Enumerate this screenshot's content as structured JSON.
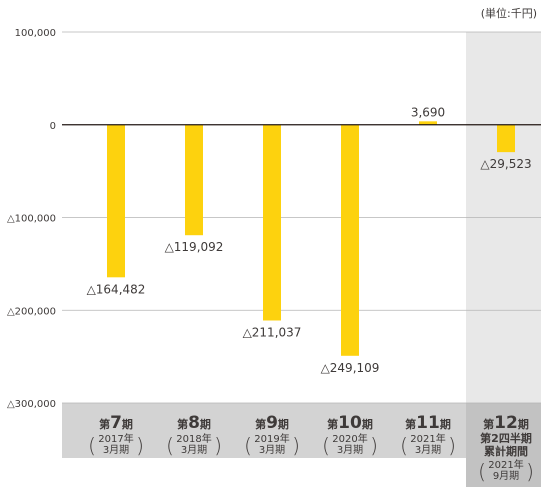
{
  "chart_data": {
    "type": "bar",
    "unit": "(単位:千円)",
    "ylim": [
      -300000,
      100000
    ],
    "yticks": [
      {
        "value": 100000,
        "label": "100,000"
      },
      {
        "value": 0,
        "label": "0"
      },
      {
        "value": -100000,
        "label": "△100,000"
      },
      {
        "value": -200000,
        "label": "△200,000"
      },
      {
        "value": -300000,
        "label": "△300,000"
      }
    ],
    "categories": [
      {
        "prefix": "第",
        "num": "7",
        "suffix": "期",
        "lines": [
          "2017年",
          "3月期"
        ]
      },
      {
        "prefix": "第",
        "num": "8",
        "suffix": "期",
        "lines": [
          "2018年",
          "3月期"
        ]
      },
      {
        "prefix": "第",
        "num": "9",
        "suffix": "期",
        "lines": [
          "2019年",
          "3月期"
        ]
      },
      {
        "prefix": "第",
        "num": "10",
        "suffix": "期",
        "lines": [
          "2020年",
          "3月期"
        ]
      },
      {
        "prefix": "第",
        "num": "11",
        "suffix": "期",
        "lines": [
          "2021年",
          "3月期"
        ]
      },
      {
        "prefix": "第",
        "num": "12",
        "suffix": "期",
        "sublines": [
          "第2四半期",
          "累計期間"
        ],
        "lines": [
          "2021年",
          "9月期"
        ],
        "highlight": true
      }
    ],
    "values": [
      -164482,
      -119092,
      -211037,
      -249109,
      3690,
      -29523
    ],
    "data_labels": [
      "△164,482",
      "△119,092",
      "△211,037",
      "△249,109",
      "3,690",
      "△29,523"
    ],
    "grid": true,
    "legend": "none"
  },
  "colors": {
    "bar": "#FDD20E",
    "axis": "#231815",
    "grid": "#b5b5b5",
    "category_band": "#d3d3d3",
    "highlight_band": "#e8e8e8",
    "text": "#3e3a39"
  }
}
